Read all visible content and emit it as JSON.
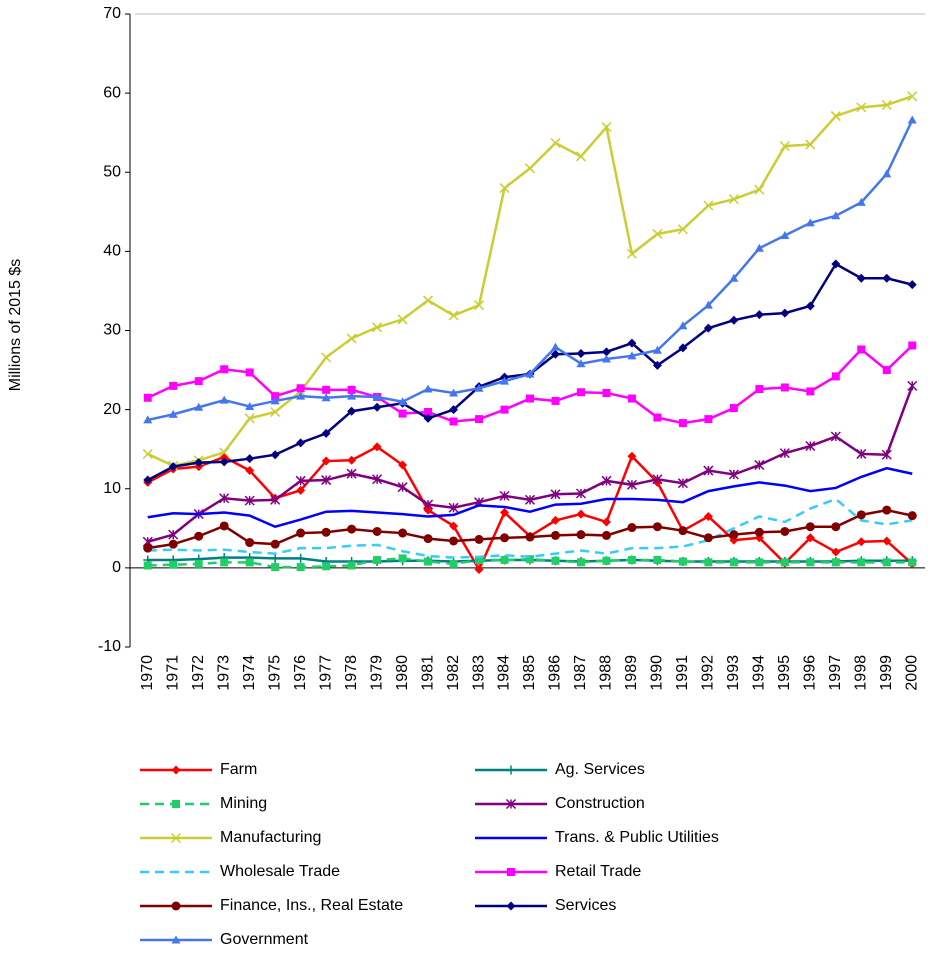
{
  "chart_data": {
    "type": "line",
    "y_label": "Millions of 2015 $s",
    "categories": [
      "1970",
      "1971",
      "1972",
      "1973",
      "1974",
      "1975",
      "1976",
      "1977",
      "1978",
      "1979",
      "1980",
      "1981",
      "1982",
      "1983",
      "1984",
      "1985",
      "1986",
      "1987",
      "1988",
      "1989",
      "1990",
      "1991",
      "1992",
      "1993",
      "1994",
      "1995",
      "1996",
      "1997",
      "1998",
      "1999",
      "2000"
    ],
    "ylim": [
      -10,
      70
    ],
    "yticks": [
      -10,
      0,
      10,
      20,
      30,
      40,
      50,
      60,
      70
    ],
    "grid": false,
    "legend": "bottom",
    "series": [
      {
        "name": "Farm",
        "color": "#ff0000",
        "marker": "diamond",
        "dashed": false,
        "values": [
          10.8,
          12.5,
          12.8,
          14,
          12.3,
          8.8,
          9.8,
          13.5,
          13.6,
          15.3,
          13,
          7.3,
          5.3,
          -0.2,
          7,
          4,
          6,
          6.8,
          5.8,
          14.1,
          10.8,
          4.7,
          6.5,
          3.5,
          3.8,
          0.6,
          3.8,
          2,
          3.3,
          3.4,
          0.5
        ]
      },
      {
        "name": "Ag. Services",
        "color": "#008080",
        "marker": "plus",
        "dashed": false,
        "values": [
          1.0,
          1.0,
          1.1,
          1.3,
          1.3,
          1.2,
          1.2,
          0.8,
          0.8,
          0.8,
          0.9,
          0.9,
          0.8,
          0.9,
          1.0,
          1.0,
          0.9,
          0.8,
          0.9,
          1.0,
          0.9,
          0.8,
          0.8,
          0.8,
          0.8,
          0.8,
          0.8,
          0.8,
          0.9,
          0.9,
          0.9
        ]
      },
      {
        "name": "Mining",
        "color": "#22cc66",
        "marker": "square",
        "dashed": true,
        "values": [
          0.3,
          0.4,
          0.5,
          0.7,
          0.7,
          0.1,
          0.1,
          0.2,
          0.3,
          1.0,
          1.2,
          0.8,
          0.5,
          1.0,
          1.0,
          1.1,
          0.9,
          0.7,
          0.9,
          1.0,
          1.0,
          0.8,
          0.7,
          0.7,
          0.7,
          0.7,
          0.7,
          0.7,
          0.7,
          0.7,
          0.7
        ]
      },
      {
        "name": "Construction",
        "color": "#800080",
        "marker": "asterisk",
        "dashed": false,
        "values": [
          3.3,
          4.2,
          6.8,
          8.8,
          8.5,
          8.6,
          11,
          11.1,
          11.9,
          11.2,
          10.2,
          8,
          7.6,
          8.3,
          9.1,
          8.6,
          9.3,
          9.4,
          11,
          10.5,
          11.2,
          10.7,
          12.3,
          11.8,
          13,
          14.5,
          15.4,
          16.6,
          14.4,
          14.3,
          23
        ]
      },
      {
        "name": "Manufacturing",
        "color": "#cccc33",
        "marker": "x",
        "dashed": false,
        "values": [
          14.4,
          12.9,
          13.6,
          14.6,
          18.9,
          19.7,
          22.3,
          26.6,
          29,
          30.4,
          31.4,
          33.8,
          31.9,
          33.2,
          48,
          50.5,
          53.7,
          52,
          55.7,
          39.7,
          42.2,
          42.8,
          45.8,
          46.6,
          47.8,
          53.3,
          53.5,
          57.1,
          58.2,
          58.5,
          59.6
        ]
      },
      {
        "name": "Trans. & Public Utilities",
        "color": "#0000ff",
        "marker": "none",
        "dashed": false,
        "values": [
          6.4,
          6.9,
          6.8,
          7,
          6.6,
          5.2,
          6.1,
          7.1,
          7.2,
          7,
          6.8,
          6.5,
          6.7,
          7.9,
          7.7,
          7.1,
          8,
          8.1,
          8.7,
          8.7,
          8.6,
          8.3,
          9.7,
          10.3,
          10.8,
          10.4,
          9.7,
          10.1,
          11.5,
          12.6,
          11.9
        ]
      },
      {
        "name": "Wholesale Trade",
        "color": "#33ccff",
        "marker": "none",
        "dashed": true,
        "values": [
          2.2,
          2.3,
          2.2,
          2.3,
          2,
          1.8,
          2.5,
          2.5,
          2.8,
          2.9,
          2.1,
          1.5,
          1.3,
          1.4,
          1.6,
          1.4,
          1.8,
          2.2,
          1.8,
          2.5,
          2.5,
          2.7,
          3.5,
          5,
          6.5,
          5.8,
          7.5,
          8.7,
          6,
          5.5,
          6
        ]
      },
      {
        "name": "Retail Trade",
        "color": "#ff00ff",
        "marker": "square",
        "dashed": false,
        "values": [
          21.5,
          23,
          23.6,
          25.1,
          24.7,
          21.7,
          22.7,
          22.5,
          22.5,
          21.6,
          19.5,
          19.7,
          18.5,
          18.8,
          20,
          21.4,
          21.1,
          22.2,
          22.1,
          21.4,
          19,
          18.3,
          18.8,
          20.2,
          22.6,
          22.8,
          22.3,
          24.2,
          27.6,
          25,
          28.1
        ]
      },
      {
        "name": "Finance, Ins., Real Estate",
        "color": "#800000",
        "marker": "circle",
        "dashed": false,
        "values": [
          2.5,
          3,
          4,
          5.3,
          3.2,
          3,
          4.4,
          4.5,
          4.9,
          4.6,
          4.4,
          3.7,
          3.4,
          3.6,
          3.8,
          3.9,
          4.1,
          4.2,
          4.1,
          5.1,
          5.2,
          4.7,
          3.8,
          4.2,
          4.5,
          4.6,
          5.2,
          5.2,
          6.7,
          7.3,
          6.6
        ]
      },
      {
        "name": "Services",
        "color": "#000080",
        "marker": "diamond",
        "dashed": false,
        "values": [
          11.1,
          12.8,
          13.3,
          13.4,
          13.8,
          14.3,
          15.8,
          17,
          19.8,
          20.3,
          20.8,
          18.9,
          20,
          22.9,
          24.1,
          24.5,
          27,
          27.1,
          27.3,
          28.4,
          25.6,
          27.8,
          30.3,
          31.3,
          32,
          32.2,
          33.1,
          38.4,
          36.6,
          36.6,
          35.8
        ]
      },
      {
        "name": "Government",
        "color": "#4477ee",
        "marker": "triangle",
        "dashed": false,
        "values": [
          18.7,
          19.4,
          20.3,
          21.2,
          20.4,
          21.1,
          21.7,
          21.5,
          21.7,
          21.6,
          21,
          22.6,
          22.1,
          22.7,
          23.6,
          24.5,
          27.9,
          25.8,
          26.4,
          26.8,
          27.5,
          30.6,
          33.2,
          36.6,
          40.4,
          42,
          43.6,
          44.5,
          46.2,
          49.8,
          56.6
        ]
      }
    ]
  }
}
